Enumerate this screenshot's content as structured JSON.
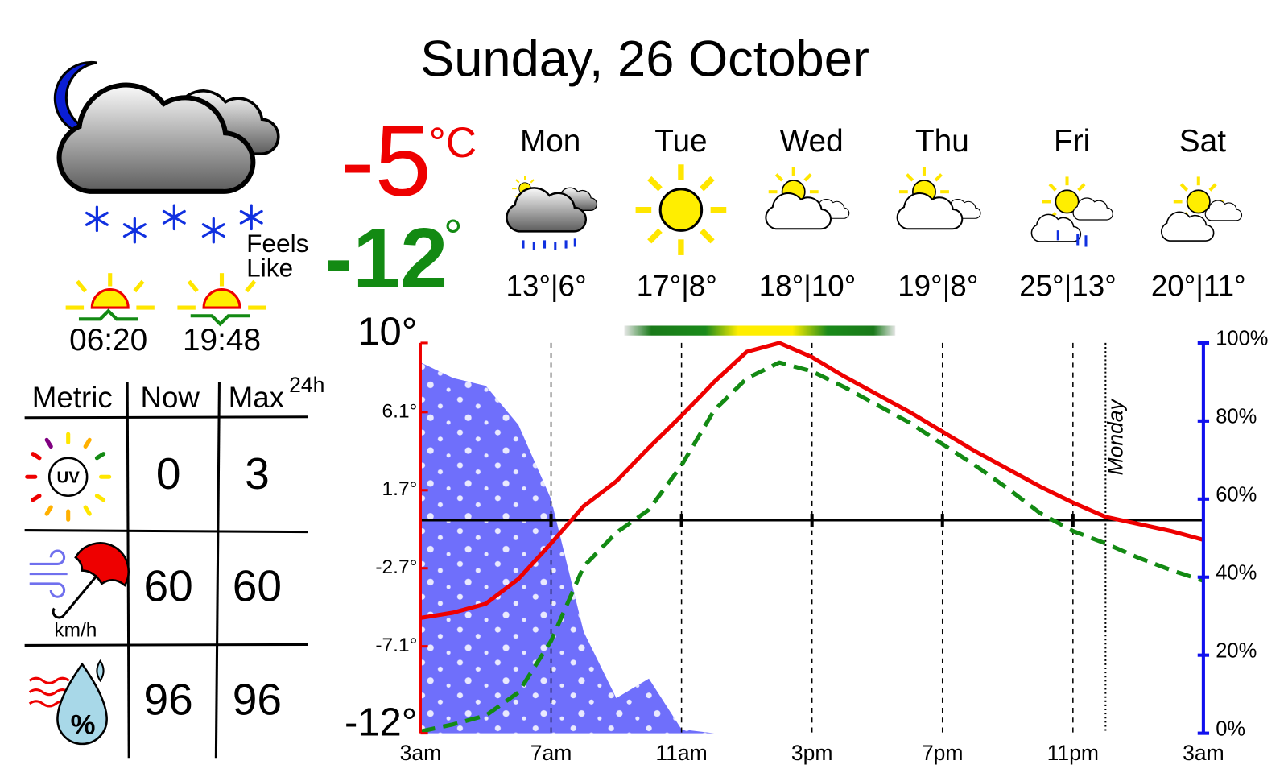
{
  "header": {
    "title": "Sunday, 26 October"
  },
  "current": {
    "temperature": -5,
    "unit": "°C",
    "feels_like_label": [
      "Feels",
      "Like"
    ],
    "feels_like": -12,
    "feels_like_unit": "°"
  },
  "sun": {
    "sunrise": "06:20",
    "sunset": "19:48"
  },
  "table": {
    "header": [
      "Metric",
      "Now",
      "Max"
    ],
    "max_period": "24h",
    "rows": [
      {
        "icon_label": "UV",
        "now": 0,
        "max": 3
      },
      {
        "unit": "km/h",
        "now": 60,
        "max": 60
      },
      {
        "icon_label": "%",
        "now": 96,
        "max": 96
      }
    ]
  },
  "forecast": [
    {
      "day": "Mon",
      "temperatures": "13°|6°"
    },
    {
      "day": "Tue",
      "temperatures": "17°|8°"
    },
    {
      "day": "Wed",
      "temperatures": "18°|10°"
    },
    {
      "day": "Thu",
      "temperatures": "19°|8°"
    },
    {
      "day": "Fri",
      "temperatures": "25°|13°"
    },
    {
      "day": "Sat",
      "temperatures": "20°|11°"
    }
  ],
  "chart_data": {
    "type": "line",
    "categories": [
      "3am",
      null,
      null,
      null,
      "7am",
      null,
      null,
      null,
      "11am",
      null,
      null,
      null,
      "3pm",
      null,
      null,
      null,
      "7pm",
      null,
      null,
      null,
      "11pm",
      null,
      null,
      null,
      "3am"
    ],
    "series": [
      {
        "color": "#ee0000",
        "style": "solid",
        "values": [
          -5.5,
          -5.2,
          -4.7,
          -3.3,
          -1.3,
          0.8,
          2.2,
          4.1,
          5.9,
          7.8,
          9.5,
          10.0,
          9.2,
          8.1,
          7.1,
          6.1,
          5.0,
          3.9,
          2.9,
          1.9,
          1.0,
          0.2,
          -0.2,
          -0.6,
          -1.1
        ]
      },
      {
        "color": "#138a13",
        "style": "dashed",
        "values": [
          -11.9,
          -11.5,
          -11.0,
          -9.7,
          -6.8,
          -2.6,
          -0.7,
          0.6,
          3.1,
          6.2,
          8.0,
          8.9,
          8.4,
          7.5,
          6.5,
          5.5,
          4.3,
          3.1,
          1.8,
          0.4,
          -0.6,
          -1.3,
          -2.1,
          -2.8,
          -3.4
        ]
      },
      {
        "color": "#6f6ffb",
        "type": "area",
        "axis": "y2",
        "values": [
          95,
          91,
          89,
          79,
          60,
          26,
          9,
          14,
          1,
          0,
          0,
          0,
          0,
          0,
          0,
          0,
          0,
          0,
          0,
          0,
          0,
          0,
          0,
          0,
          0
        ]
      }
    ],
    "ylim": [
      -12,
      10
    ],
    "yticks": [
      {
        "value": 10,
        "label": "10°"
      },
      {
        "value": 6.1,
        "label": "6.1°"
      },
      {
        "value": 1.7,
        "label": "1.7°"
      },
      {
        "value": -2.7,
        "label": "-2.7°"
      },
      {
        "value": -7.1,
        "label": "-7.1°"
      },
      {
        "value": -12,
        "label": "-12°"
      }
    ],
    "y2lim": [
      0,
      100
    ],
    "y2ticks": [
      {
        "value": 0,
        "label": "0%"
      },
      {
        "value": 20,
        "label": "20%"
      },
      {
        "value": 40,
        "label": "40%"
      },
      {
        "value": 60,
        "label": "60%"
      },
      {
        "value": 80,
        "label": "80%"
      },
      {
        "value": 100,
        "label": "100%"
      }
    ],
    "annotations": [
      "Monday"
    ]
  }
}
